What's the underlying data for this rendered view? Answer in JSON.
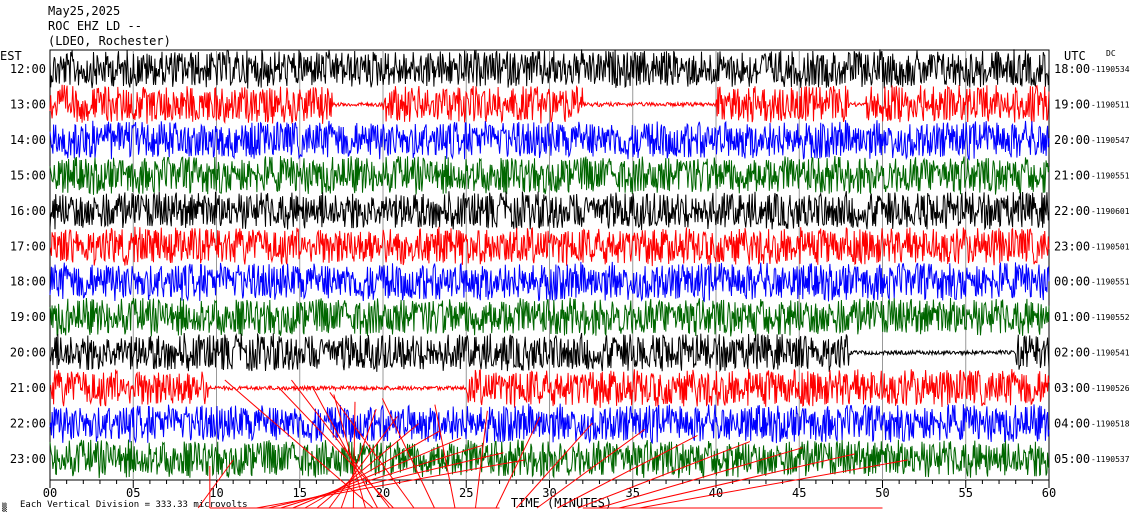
{
  "header": {
    "date": "May25,2025",
    "station": "ROC EHZ LD --",
    "network": "(LDEO, Rochester)"
  },
  "left_zone": "EST",
  "right_zone": "UTC",
  "dc_label": "DC",
  "footer": {
    "symbol": "▒",
    "scale_text": "Each Vertical Division =  333.33 microvolts"
  },
  "colors": {
    "trace_cycle": [
      "#000000",
      "#ff0000",
      "#0000ff",
      "#006600"
    ],
    "grid": "#999999",
    "event_lines": "#ff0000"
  },
  "chart_data": {
    "type": "line",
    "description_note": "helicorder",
    "x_axis": {
      "label": "TIME (MINUTES)",
      "range": [
        0,
        60
      ],
      "ticks": [
        "00",
        "05",
        "10",
        "15",
        "20",
        "25",
        "30",
        "35",
        "40",
        "45",
        "50",
        "55",
        "60"
      ]
    },
    "rows": [
      {
        "est": "12:00",
        "utc": "18:00",
        "dc": "-1190534",
        "color": "#000000",
        "gaps": []
      },
      {
        "est": "13:00",
        "utc": "19:00",
        "dc": "-1190511",
        "color": "#ff0000",
        "gaps": [
          [
            17,
            20
          ],
          [
            32,
            40
          ],
          [
            48,
            49
          ]
        ]
      },
      {
        "est": "14:00",
        "utc": "20:00",
        "dc": "-1190547",
        "color": "#0000ff",
        "gaps": []
      },
      {
        "est": "15:00",
        "utc": "21:00",
        "dc": "-1190551",
        "color": "#006600",
        "gaps": []
      },
      {
        "est": "16:00",
        "utc": "22:00",
        "dc": "-1190601",
        "color": "#000000",
        "gaps": []
      },
      {
        "est": "17:00",
        "utc": "23:00",
        "dc": "-1190501",
        "color": "#ff0000",
        "gaps": []
      },
      {
        "est": "18:00",
        "utc": "00:00",
        "dc": "-1190551",
        "color": "#0000ff",
        "gaps": []
      },
      {
        "est": "19:00",
        "utc": "01:00",
        "dc": "-1190552",
        "color": "#006600",
        "gaps": []
      },
      {
        "est": "20:00",
        "utc": "02:00",
        "dc": "-1190541",
        "color": "#000000",
        "gaps": [
          [
            48,
            58
          ]
        ]
      },
      {
        "est": "21:00",
        "utc": "03:00",
        "dc": "-1190526",
        "color": "#ff0000",
        "gaps": [
          [
            9.5,
            25
          ]
        ]
      },
      {
        "est": "22:00",
        "utc": "04:00",
        "dc": "-1190518",
        "color": "#0000ff",
        "gaps": []
      },
      {
        "est": "23:00",
        "utc": "05:00",
        "dc": "-1190537",
        "color": "#006600",
        "gaps": []
      }
    ]
  }
}
